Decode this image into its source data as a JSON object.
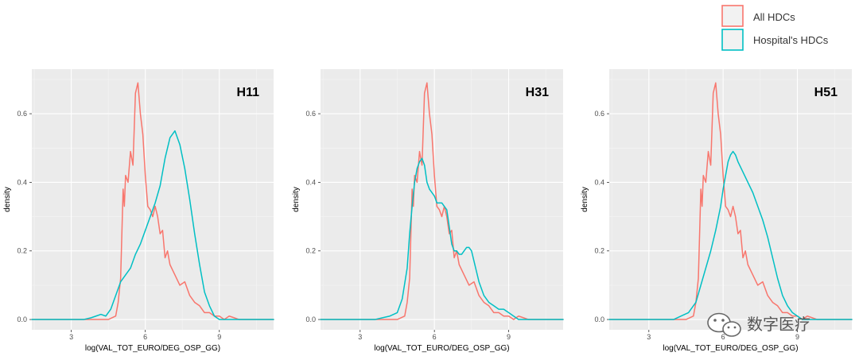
{
  "legend": {
    "entries": [
      {
        "label": "All HDCs",
        "color": "#F8766D"
      },
      {
        "label": "Hospital's HDCs",
        "color": "#00BFC4"
      }
    ]
  },
  "watermark": {
    "text": "数字医疗",
    "icon": "wechat-icon"
  },
  "colors": {
    "panel_bg": "#EBEBEB",
    "grid_major": "#FFFFFF",
    "grid_minor": "#F5F5F5",
    "all_hdcs": "#F8766D",
    "hospital_hdcs": "#00BFC4"
  },
  "chart_data": [
    {
      "type": "line",
      "title": "H11",
      "xlabel": "log(VAL_TOT_EURO/DEG_OSP_GG)",
      "ylabel": "density",
      "xlim": [
        1.4,
        11.2
      ],
      "ylim": [
        -0.03,
        0.73
      ],
      "x_ticks": [
        3,
        6,
        9
      ],
      "x_tick_labels": [
        "3",
        "6",
        "9"
      ],
      "y_ticks": [
        0.0,
        0.2,
        0.4,
        0.6
      ],
      "y_tick_labels": [
        "0.0",
        "0.2",
        "0.4",
        "0.6"
      ],
      "grid": true,
      "series": [
        {
          "name": "All HDCs",
          "color": "#F8766D",
          "x": [
            1.4,
            4.2,
            4.5,
            4.8,
            4.9,
            5.0,
            5.05,
            5.1,
            5.15,
            5.2,
            5.3,
            5.4,
            5.5,
            5.6,
            5.7,
            5.8,
            5.9,
            6.0,
            6.1,
            6.2,
            6.3,
            6.4,
            6.5,
            6.6,
            6.7,
            6.8,
            6.9,
            7.0,
            7.2,
            7.4,
            7.6,
            7.8,
            8.0,
            8.2,
            8.4,
            8.6,
            8.8,
            9.0,
            9.2,
            9.4,
            9.6,
            9.8,
            10.0,
            11.2
          ],
          "y": [
            0.0,
            0.0,
            0.0,
            0.01,
            0.05,
            0.12,
            0.25,
            0.38,
            0.33,
            0.42,
            0.4,
            0.49,
            0.45,
            0.66,
            0.69,
            0.6,
            0.54,
            0.42,
            0.33,
            0.32,
            0.3,
            0.33,
            0.3,
            0.25,
            0.26,
            0.18,
            0.2,
            0.16,
            0.13,
            0.1,
            0.11,
            0.07,
            0.05,
            0.04,
            0.02,
            0.02,
            0.01,
            0.01,
            0.0,
            0.01,
            0.005,
            0.0,
            0.0,
            0.0
          ]
        },
        {
          "name": "Hospital's HDCs",
          "color": "#00BFC4",
          "x": [
            1.4,
            3.5,
            3.8,
            4.0,
            4.2,
            4.4,
            4.6,
            4.8,
            5.0,
            5.2,
            5.4,
            5.6,
            5.8,
            6.0,
            6.2,
            6.4,
            6.6,
            6.8,
            7.0,
            7.2,
            7.4,
            7.6,
            7.8,
            8.0,
            8.2,
            8.4,
            8.6,
            8.8,
            9.0,
            9.2,
            9.4,
            11.2
          ],
          "y": [
            0.0,
            0.0,
            0.005,
            0.01,
            0.015,
            0.01,
            0.03,
            0.07,
            0.11,
            0.13,
            0.15,
            0.19,
            0.22,
            0.26,
            0.3,
            0.34,
            0.39,
            0.47,
            0.53,
            0.55,
            0.51,
            0.44,
            0.35,
            0.25,
            0.16,
            0.08,
            0.04,
            0.01,
            0.0,
            0.0,
            0.0,
            0.0
          ]
        }
      ]
    },
    {
      "type": "line",
      "title": "H31",
      "xlabel": "log(VAL_TOT_EURO/DEG_OSP_GG)",
      "ylabel": "density",
      "xlim": [
        1.4,
        11.2
      ],
      "ylim": [
        -0.03,
        0.73
      ],
      "x_ticks": [
        3,
        6,
        9
      ],
      "x_tick_labels": [
        "3",
        "6",
        "9"
      ],
      "y_ticks": [
        0.0,
        0.2,
        0.4,
        0.6
      ],
      "y_tick_labels": [
        "0.0",
        "0.2",
        "0.4",
        "0.6"
      ],
      "grid": true,
      "series": [
        {
          "name": "All HDCs",
          "color": "#F8766D",
          "x": [
            1.4,
            4.2,
            4.5,
            4.8,
            4.9,
            5.0,
            5.05,
            5.1,
            5.15,
            5.2,
            5.3,
            5.4,
            5.5,
            5.6,
            5.7,
            5.8,
            5.9,
            6.0,
            6.1,
            6.2,
            6.3,
            6.4,
            6.5,
            6.6,
            6.7,
            6.8,
            6.9,
            7.0,
            7.2,
            7.4,
            7.6,
            7.8,
            8.0,
            8.2,
            8.4,
            8.6,
            8.8,
            9.0,
            9.2,
            9.4,
            9.6,
            9.8,
            10.0,
            11.2
          ],
          "y": [
            0.0,
            0.0,
            0.0,
            0.01,
            0.05,
            0.12,
            0.25,
            0.38,
            0.33,
            0.42,
            0.4,
            0.49,
            0.45,
            0.66,
            0.69,
            0.6,
            0.54,
            0.42,
            0.33,
            0.32,
            0.3,
            0.33,
            0.3,
            0.25,
            0.26,
            0.18,
            0.2,
            0.16,
            0.13,
            0.1,
            0.11,
            0.07,
            0.05,
            0.04,
            0.02,
            0.02,
            0.01,
            0.01,
            0.0,
            0.01,
            0.005,
            0.0,
            0.0,
            0.0
          ]
        },
        {
          "name": "Hospital's HDCs",
          "color": "#00BFC4",
          "x": [
            1.4,
            3.6,
            3.9,
            4.2,
            4.5,
            4.7,
            4.9,
            5.0,
            5.1,
            5.2,
            5.3,
            5.4,
            5.5,
            5.6,
            5.7,
            5.8,
            5.9,
            6.0,
            6.1,
            6.2,
            6.3,
            6.4,
            6.5,
            6.6,
            6.7,
            6.8,
            6.9,
            7.0,
            7.1,
            7.2,
            7.3,
            7.4,
            7.5,
            7.6,
            7.7,
            7.8,
            8.0,
            8.2,
            8.4,
            8.6,
            8.8,
            9.0,
            9.2,
            9.4,
            9.6,
            11.2
          ],
          "y": [
            0.0,
            0.0,
            0.005,
            0.01,
            0.02,
            0.06,
            0.15,
            0.25,
            0.33,
            0.4,
            0.44,
            0.46,
            0.47,
            0.45,
            0.4,
            0.38,
            0.37,
            0.36,
            0.34,
            0.34,
            0.34,
            0.33,
            0.32,
            0.27,
            0.22,
            0.2,
            0.2,
            0.19,
            0.19,
            0.2,
            0.21,
            0.21,
            0.2,
            0.17,
            0.14,
            0.11,
            0.07,
            0.05,
            0.04,
            0.03,
            0.03,
            0.02,
            0.01,
            0.0,
            0.0,
            0.0
          ]
        }
      ]
    },
    {
      "type": "line",
      "title": "H51",
      "xlabel": "log(VAL_TOT_EURO/DEG_OSP_GG)",
      "ylabel": "density",
      "xlim": [
        1.4,
        11.2
      ],
      "ylim": [
        -0.03,
        0.73
      ],
      "x_ticks": [
        3,
        6,
        9
      ],
      "x_tick_labels": [
        "3",
        "6",
        "9"
      ],
      "y_ticks": [
        0.0,
        0.2,
        0.4,
        0.6
      ],
      "y_tick_labels": [
        "0.0",
        "0.2",
        "0.4",
        "0.6"
      ],
      "grid": true,
      "series": [
        {
          "name": "All HDCs",
          "color": "#F8766D",
          "x": [
            1.4,
            4.2,
            4.5,
            4.8,
            4.9,
            5.0,
            5.05,
            5.1,
            5.15,
            5.2,
            5.3,
            5.4,
            5.5,
            5.6,
            5.7,
            5.8,
            5.9,
            6.0,
            6.1,
            6.2,
            6.3,
            6.4,
            6.5,
            6.6,
            6.7,
            6.8,
            6.9,
            7.0,
            7.2,
            7.4,
            7.6,
            7.8,
            8.0,
            8.2,
            8.4,
            8.6,
            8.8,
            9.0,
            9.2,
            9.4,
            9.6,
            9.8,
            10.0,
            11.2
          ],
          "y": [
            0.0,
            0.0,
            0.0,
            0.01,
            0.05,
            0.12,
            0.25,
            0.38,
            0.33,
            0.42,
            0.4,
            0.49,
            0.45,
            0.66,
            0.69,
            0.6,
            0.54,
            0.42,
            0.33,
            0.32,
            0.3,
            0.33,
            0.3,
            0.25,
            0.26,
            0.18,
            0.2,
            0.16,
            0.13,
            0.1,
            0.11,
            0.07,
            0.05,
            0.04,
            0.02,
            0.02,
            0.01,
            0.01,
            0.0,
            0.01,
            0.005,
            0.0,
            0.0,
            0.0
          ]
        },
        {
          "name": "Hospital's HDCs",
          "color": "#00BFC4",
          "x": [
            1.4,
            4.0,
            4.3,
            4.6,
            4.9,
            5.1,
            5.3,
            5.5,
            5.7,
            5.9,
            6.0,
            6.1,
            6.2,
            6.3,
            6.4,
            6.5,
            6.6,
            6.8,
            7.0,
            7.2,
            7.4,
            7.6,
            7.8,
            8.0,
            8.2,
            8.4,
            8.6,
            8.8,
            9.0,
            9.2,
            11.2
          ],
          "y": [
            0.0,
            0.0,
            0.01,
            0.02,
            0.05,
            0.1,
            0.15,
            0.2,
            0.26,
            0.33,
            0.38,
            0.42,
            0.46,
            0.48,
            0.49,
            0.48,
            0.46,
            0.43,
            0.4,
            0.37,
            0.33,
            0.29,
            0.24,
            0.18,
            0.12,
            0.07,
            0.04,
            0.02,
            0.01,
            0.0,
            0.0
          ]
        }
      ]
    }
  ]
}
